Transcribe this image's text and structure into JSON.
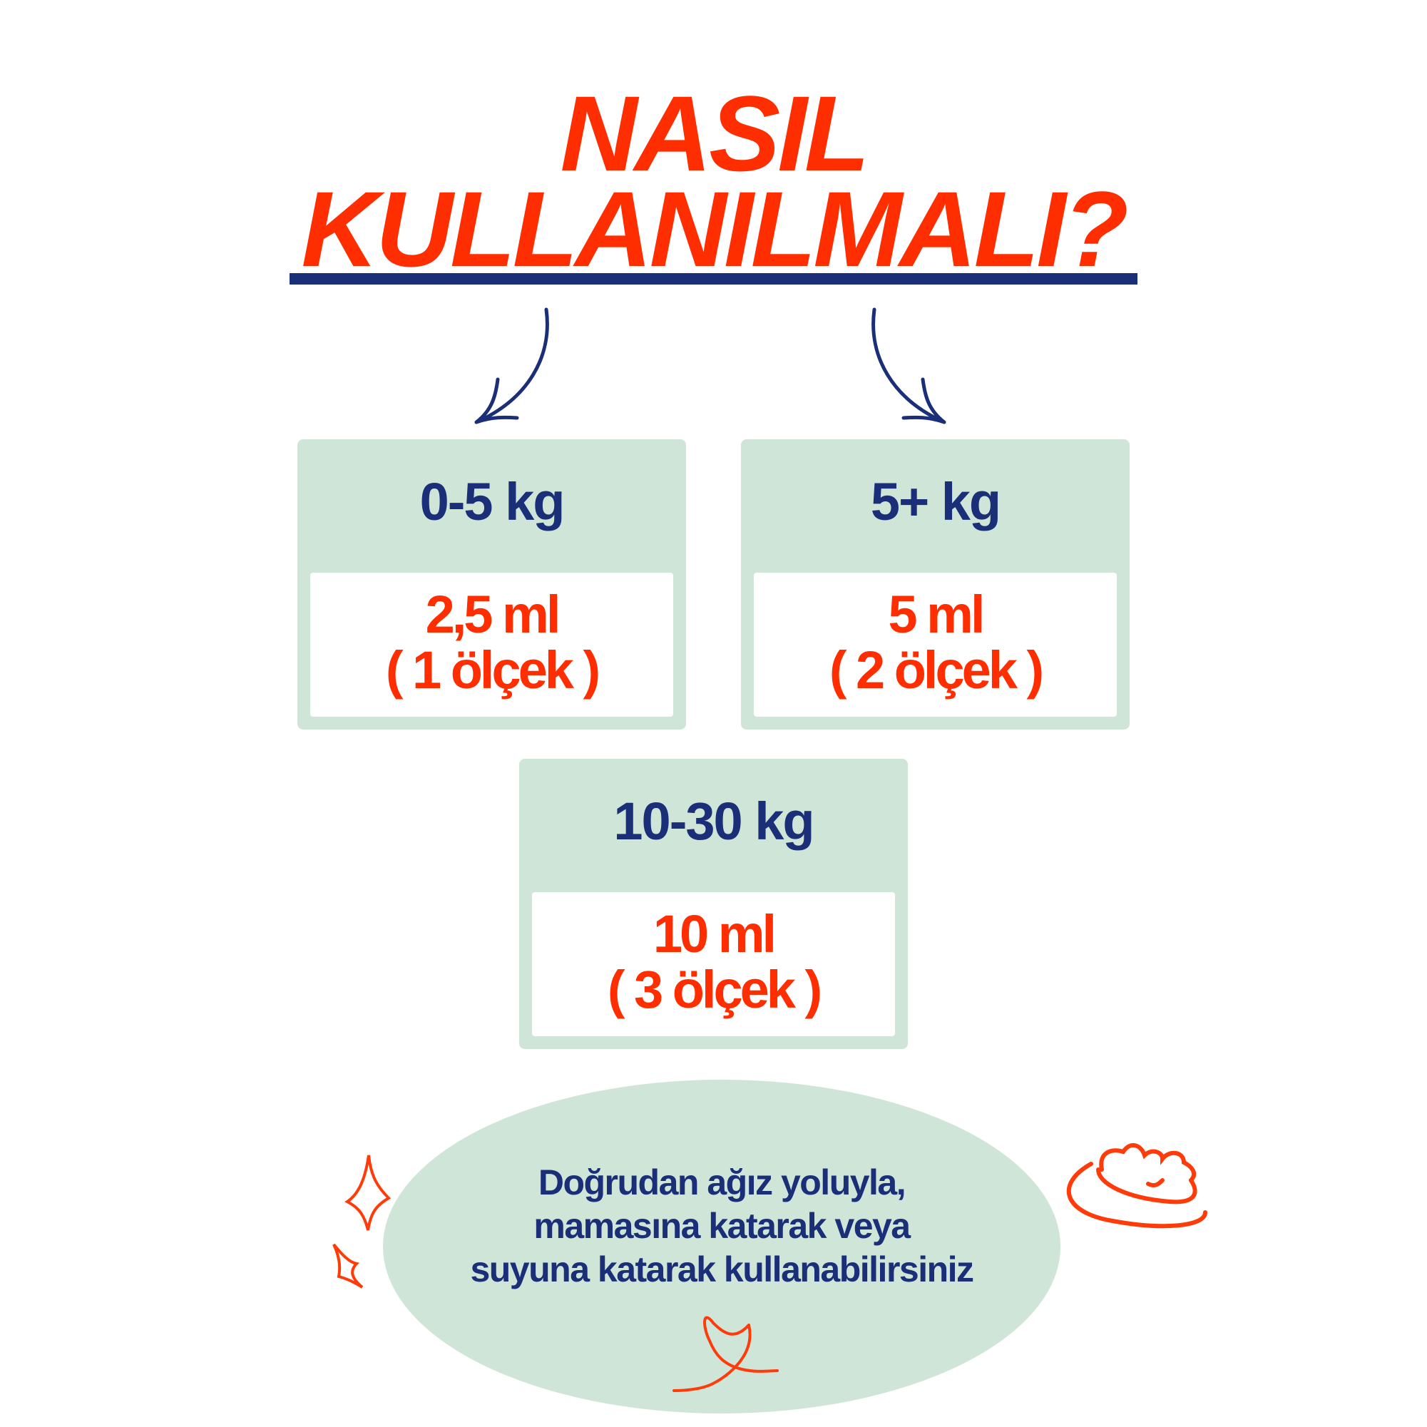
{
  "title": {
    "line1": "NASIL",
    "line2": "KULLANILMALI?"
  },
  "doses": [
    {
      "weight": "0-5 kg",
      "amount": "2,5 ml",
      "scoops": "( 1 ölçek )"
    },
    {
      "weight": "5+ kg",
      "amount": "5 ml",
      "scoops": "( 2 ölçek )"
    },
    {
      "weight": "10-30 kg",
      "amount": "10 ml",
      "scoops": "( 3 ölçek )"
    }
  ],
  "note": {
    "line1": "Doğrudan ağız yoluyla,",
    "line2": "mamasına katarak veya",
    "line3": "suyuna katarak kullanabilirsiniz"
  },
  "colors": {
    "red": "#ff2e00",
    "navy": "#1b2f78",
    "mint": "#cfe5d8"
  }
}
